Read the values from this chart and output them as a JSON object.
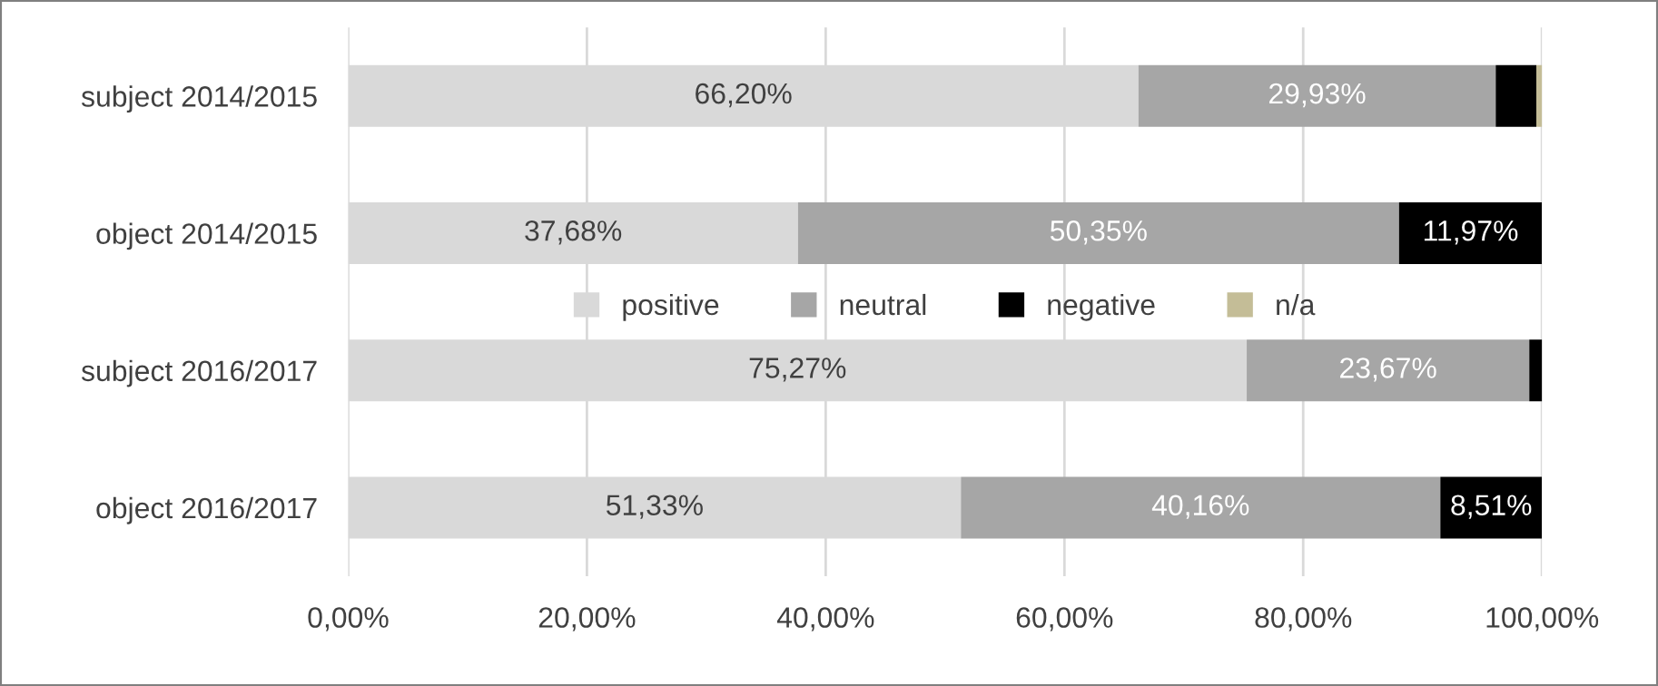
{
  "chart_data": {
    "type": "bar",
    "orientation": "horizontal",
    "stacked": true,
    "categories": [
      "subject 2014/2015",
      "object 2014/2015",
      "subject 2016/2017",
      "object 2016/2017"
    ],
    "series": [
      {
        "name": "positive",
        "color": "#d9d9d9",
        "values": [
          66.2,
          37.68,
          75.27,
          51.33
        ],
        "value_labels": [
          "66,20%",
          "37,68%",
          "75,27%",
          "51,33%"
        ]
      },
      {
        "name": "neutral",
        "color": "#a6a6a6",
        "values": [
          29.93,
          50.35,
          23.67,
          40.16
        ],
        "value_labels": [
          "29,93%",
          "50,35%",
          "23,67%",
          "40,16%"
        ]
      },
      {
        "name": "negative",
        "color": "#000000",
        "values": [
          3.4,
          11.97,
          1.1,
          8.51
        ],
        "value_labels": [
          null,
          "11,97%",
          null,
          "8,51%"
        ]
      },
      {
        "name": "n/a",
        "color": "#c4bd97",
        "values": [
          0.5,
          0,
          0,
          0
        ],
        "value_labels": [
          null,
          null,
          null,
          null
        ]
      }
    ],
    "xlim": [
      0,
      100
    ],
    "xticks": [
      {
        "value": 0,
        "label": "0,00%"
      },
      {
        "value": 20,
        "label": "20,00%"
      },
      {
        "value": 40,
        "label": "40,00%"
      },
      {
        "value": 60,
        "label": "60,00%"
      },
      {
        "value": 80,
        "label": "80,00%"
      },
      {
        "value": 100,
        "label": "100,00%"
      }
    ],
    "grid": "x",
    "legend": "center"
  }
}
